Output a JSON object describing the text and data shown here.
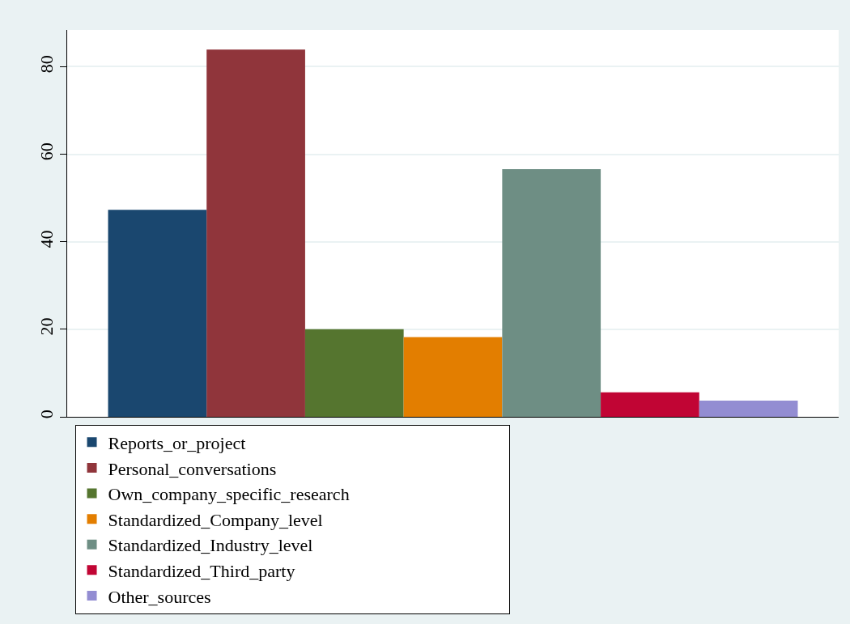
{
  "chart_data": {
    "type": "bar",
    "categories": [
      null
    ],
    "series": [
      {
        "name": "Reports_or_project",
        "color": "#1a476f",
        "values": [
          47.3
        ]
      },
      {
        "name": "Personal_conversations",
        "color": "#90353b",
        "values": [
          83.9
        ]
      },
      {
        "name": "Own_company_specific_research",
        "color": "#55752f",
        "values": [
          20.0
        ]
      },
      {
        "name": "Standardized_Company_level",
        "color": "#e37e00",
        "values": [
          18.2
        ]
      },
      {
        "name": "Standardized_Industry_level",
        "color": "#6e8e84",
        "values": [
          56.6
        ]
      },
      {
        "name": "Standardized_Third_party",
        "color": "#c10534",
        "values": [
          5.6
        ]
      },
      {
        "name": "Other_sources",
        "color": "#938dd2",
        "values": [
          3.7
        ]
      }
    ],
    "ylim": [
      0,
      88.4
    ],
    "yticks": [
      0,
      20,
      40,
      60,
      80
    ],
    "grid": "y",
    "legend": "bottom",
    "tick_labels": "y"
  }
}
